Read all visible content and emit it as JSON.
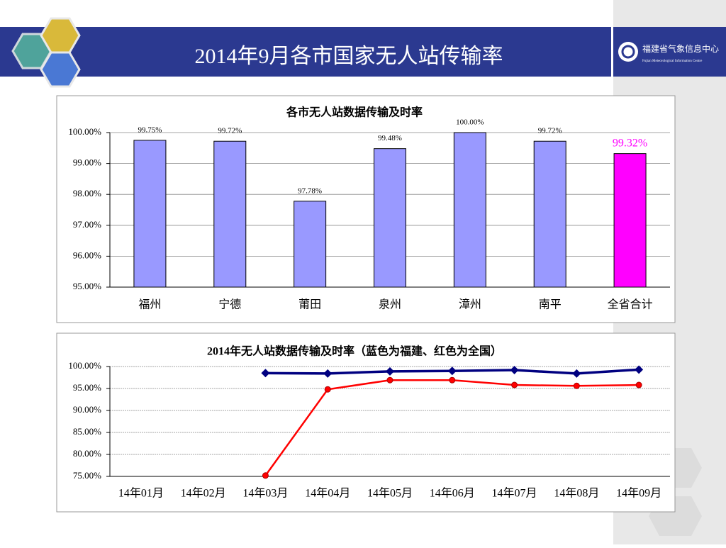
{
  "header": {
    "title": "2014年9月各市国家无人站传输率",
    "logo_text": "福建省气象信息中心",
    "logo_subtext": "Fujian Meteorological Information Centre"
  },
  "chart_data": [
    {
      "type": "bar",
      "title": "各市无人站数据传输及时率",
      "categories": [
        "福州",
        "宁德",
        "莆田",
        "泉州",
        "漳州",
        "南平",
        "全省合计"
      ],
      "values": [
        99.75,
        99.72,
        97.78,
        99.48,
        100.0,
        99.72,
        99.32
      ],
      "value_labels": [
        "99.75%",
        "99.72%",
        "97.78%",
        "99.48%",
        "100.00%",
        "99.72%",
        "99.32%"
      ],
      "colors": [
        "#9999ff",
        "#9999ff",
        "#9999ff",
        "#9999ff",
        "#9999ff",
        "#9999ff",
        "#ff00ff"
      ],
      "value_label_colors": [
        "#000000",
        "#000000",
        "#000000",
        "#000000",
        "#000000",
        "#000000",
        "#ff00ff"
      ],
      "ylim": [
        95,
        100
      ],
      "yticks": [
        {
          "value": 95,
          "label": "95.00%"
        },
        {
          "value": 96,
          "label": "96.00%"
        },
        {
          "value": 97,
          "label": "97.00%"
        },
        {
          "value": 98,
          "label": "98.00%"
        },
        {
          "value": 99,
          "label": "99.00%"
        },
        {
          "value": 100,
          "label": "100.00%"
        }
      ],
      "grid": true
    },
    {
      "type": "line",
      "title": "2014年无人站数据传输及时率（蓝色为福建、红色为全国）",
      "categories": [
        "14年01月",
        "14年02月",
        "14年03月",
        "14年04月",
        "14年05月",
        "14年06月",
        "14年07月",
        "14年08月",
        "14年09月"
      ],
      "series": [
        {
          "color": "#000080",
          "marker": "diamond",
          "values": [
            null,
            null,
            98.5,
            98.4,
            98.9,
            99.0,
            99.2,
            98.4,
            99.3
          ]
        },
        {
          "color": "#ff0000",
          "marker": "circle",
          "values": [
            null,
            null,
            75.2,
            94.8,
            96.9,
            96.9,
            95.8,
            95.6,
            95.8
          ]
        }
      ],
      "ylim": [
        75,
        100
      ],
      "yticks": [
        {
          "value": 75,
          "label": "75.00%"
        },
        {
          "value": 80,
          "label": "80.00%"
        },
        {
          "value": 85,
          "label": "85.00%"
        },
        {
          "value": 90,
          "label": "90.00%"
        },
        {
          "value": 95,
          "label": "95.00%"
        },
        {
          "value": 100,
          "label": "100.00%"
        }
      ],
      "grid": true
    }
  ]
}
